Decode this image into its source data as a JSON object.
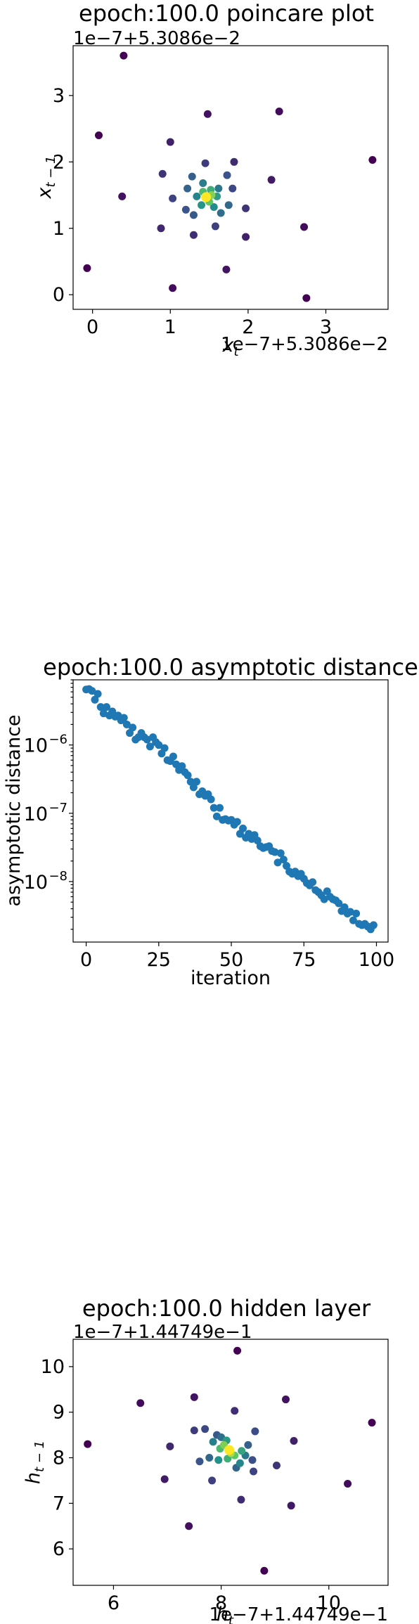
{
  "chart_data": [
    {
      "type": "scatter",
      "title": "epoch:100.0 poincare plot",
      "xlabel": "x_t",
      "ylabel": "x_{t-1}",
      "x_offset_text": "1e−7+5.3086e−2",
      "y_offset_text": "1e−7+5.3086e−2",
      "xlim": [
        -0.25,
        3.8
      ],
      "ylim": [
        -0.22,
        3.75
      ],
      "xticks": [
        0,
        1,
        2,
        3
      ],
      "yticks": [
        0,
        1,
        2,
        3
      ],
      "grid": false,
      "colormap": [
        "#440154",
        "#3b528b",
        "#21918c",
        "#5ec962",
        "#fde725"
      ],
      "points": [
        {
          "x": 0.4,
          "y": 3.6,
          "c": 0.0
        },
        {
          "x": 3.6,
          "y": 2.03,
          "c": 0.0
        },
        {
          "x": 2.75,
          "y": -0.05,
          "c": 0.0
        },
        {
          "x": -0.07,
          "y": 0.4,
          "c": 0.0
        },
        {
          "x": 0.08,
          "y": 2.4,
          "c": 0.0
        },
        {
          "x": 2.4,
          "y": 2.76,
          "c": 0.03
        },
        {
          "x": 2.72,
          "y": 1.02,
          "c": 0.03
        },
        {
          "x": 1.03,
          "y": 0.1,
          "c": 0.03
        },
        {
          "x": 0.38,
          "y": 1.48,
          "c": 0.05
        },
        {
          "x": 1.48,
          "y": 2.72,
          "c": 0.05
        },
        {
          "x": 1.72,
          "y": 0.38,
          "c": 0.06
        },
        {
          "x": 2.3,
          "y": 1.73,
          "c": 0.08
        },
        {
          "x": 1.0,
          "y": 2.3,
          "c": 0.1
        },
        {
          "x": 1.97,
          "y": 0.87,
          "c": 0.1
        },
        {
          "x": 0.88,
          "y": 1.0,
          "c": 0.12
        },
        {
          "x": 1.82,
          "y": 2.0,
          "c": 0.13
        },
        {
          "x": 1.3,
          "y": 0.9,
          "c": 0.14
        },
        {
          "x": 0.9,
          "y": 1.82,
          "c": 0.15
        },
        {
          "x": 1.97,
          "y": 1.3,
          "c": 0.16
        },
        {
          "x": 1.45,
          "y": 1.98,
          "c": 0.18
        },
        {
          "x": 1.58,
          "y": 1.03,
          "c": 0.19
        },
        {
          "x": 1.03,
          "y": 1.45,
          "c": 0.2
        },
        {
          "x": 1.8,
          "y": 1.6,
          "c": 0.22
        },
        {
          "x": 1.73,
          "y": 1.8,
          "c": 0.25
        },
        {
          "x": 1.2,
          "y": 1.28,
          "c": 0.26
        },
        {
          "x": 1.3,
          "y": 1.2,
          "c": 0.28
        },
        {
          "x": 1.28,
          "y": 1.78,
          "c": 0.3
        },
        {
          "x": 1.22,
          "y": 1.6,
          "c": 0.32
        },
        {
          "x": 1.75,
          "y": 1.35,
          "c": 0.34
        },
        {
          "x": 1.65,
          "y": 1.23,
          "c": 0.36
        },
        {
          "x": 1.62,
          "y": 1.6,
          "c": 0.4
        },
        {
          "x": 1.42,
          "y": 1.68,
          "c": 0.42
        },
        {
          "x": 1.34,
          "y": 1.48,
          "c": 0.45
        },
        {
          "x": 1.56,
          "y": 1.32,
          "c": 0.48
        },
        {
          "x": 1.4,
          "y": 1.35,
          "c": 0.52
        },
        {
          "x": 1.6,
          "y": 1.48,
          "c": 0.56
        },
        {
          "x": 1.52,
          "y": 1.58,
          "c": 0.62
        },
        {
          "x": 1.42,
          "y": 1.55,
          "c": 0.68
        },
        {
          "x": 1.5,
          "y": 1.4,
          "c": 0.74
        },
        {
          "x": 1.53,
          "y": 1.5,
          "c": 0.82
        },
        {
          "x": 1.46,
          "y": 1.47,
          "c": 1.0
        }
      ]
    },
    {
      "type": "scatter",
      "title": "epoch:100.0 asymptotic distance",
      "xlabel": "iteration",
      "ylabel": "asymptotic distance",
      "yscale": "log",
      "xlim": [
        -4.5,
        104
      ],
      "ylim": [
        1.3e-09,
        9e-06
      ],
      "xticks": [
        0,
        25,
        50,
        75,
        100
      ],
      "yticks": [
        1e-08,
        1e-07,
        1e-06
      ],
      "ytick_labels": [
        "10",
        "10",
        "10"
      ],
      "ytick_exponents": [
        "−8",
        "−7",
        "−6"
      ],
      "color": "#1f77b4",
      "grid": false,
      "y": [
        6.5e-06,
        6.6e-06,
        6.2e-06,
        4.6e-06,
        5.6e-06,
        3.6e-06,
        2.9e-06,
        3.6e-06,
        2.7e-06,
        3.1e-06,
        2.6e-06,
        2.7e-06,
        2.3e-06,
        2.5e-06,
        2e-06,
        1.5e-06,
        1.8e-06,
        1.2e-06,
        1.3e-06,
        1.5e-06,
        1.3e-06,
        1.2e-06,
        9.5e-07,
        1.3e-06,
        1.1e-06,
        1e-06,
        7.5e-07,
        9e-07,
        6e-07,
        5.8e-07,
        6.8e-07,
        5.2e-07,
        4.3e-07,
        4.9e-07,
        4e-07,
        3.6e-07,
        2.9e-07,
        2.4e-07,
        2.9e-07,
        1.9e-07,
        2.1e-07,
        1.8e-07,
        1.9e-07,
        1.6e-07,
        1.2e-07,
        9e-08,
        1.2e-07,
        8e-08,
        8.2e-08,
        7.8e-08,
        8e-08,
        6.8e-08,
        7.5e-08,
        5e-08,
        6e-08,
        4.4e-08,
        5e-08,
        4.2e-08,
        4.8e-08,
        4e-08,
        3.3e-08,
        3.1e-08,
        3.2e-08,
        3.3e-08,
        2.8e-08,
        2.7e-08,
        1.9e-08,
        2.6e-08,
        2.1e-08,
        1.7e-08,
        1.4e-08,
        1.3e-08,
        1.4e-08,
        1.2e-08,
        1.3e-08,
        1.1e-08,
        9.5e-09,
        8.8e-09,
        9.8e-09,
        7.5e-09,
        7e-09,
        6.3e-09,
        5.5e-09,
        7.2e-09,
        6e-09,
        5.5e-09,
        5.3e-09,
        4.8e-09,
        3.7e-09,
        4.2e-09,
        3.4e-09,
        3.6e-09,
        2.7e-09,
        3.4e-09,
        2.4e-09,
        2.3e-09,
        2.4e-09,
        2.2e-09,
        2e-09,
        2.3e-09
      ]
    },
    {
      "type": "scatter",
      "title": "epoch:100.0 hidden layer",
      "xlabel": "h_t",
      "ylabel": "h_{t-1}",
      "x_offset_text": "1e−7+1.44749e−1",
      "y_offset_text": "1e−7+1.44749e−1",
      "xlim": [
        5.25,
        11.1
      ],
      "ylim": [
        5.2,
        10.6
      ],
      "xticks": [
        6,
        8,
        10
      ],
      "yticks": [
        6,
        7,
        8,
        9,
        10
      ],
      "grid": false,
      "colormap": [
        "#440154",
        "#3b528b",
        "#21918c",
        "#5ec962",
        "#fde725"
      ],
      "points": [
        {
          "x": 8.3,
          "y": 10.35,
          "c": 0.0
        },
        {
          "x": 10.8,
          "y": 8.77,
          "c": 0.0
        },
        {
          "x": 8.8,
          "y": 5.52,
          "c": 0.0
        },
        {
          "x": 5.52,
          "y": 8.3,
          "c": 0.0
        },
        {
          "x": 6.5,
          "y": 9.2,
          "c": 0.03
        },
        {
          "x": 10.35,
          "y": 7.43,
          "c": 0.03
        },
        {
          "x": 7.4,
          "y": 6.5,
          "c": 0.04
        },
        {
          "x": 9.2,
          "y": 9.28,
          "c": 0.05
        },
        {
          "x": 7.5,
          "y": 9.33,
          "c": 0.06
        },
        {
          "x": 9.3,
          "y": 6.95,
          "c": 0.07
        },
        {
          "x": 6.95,
          "y": 7.53,
          "c": 0.08
        },
        {
          "x": 9.35,
          "y": 8.37,
          "c": 0.1
        },
        {
          "x": 7.05,
          "y": 8.25,
          "c": 0.12
        },
        {
          "x": 8.37,
          "y": 7.08,
          "c": 0.13
        },
        {
          "x": 8.25,
          "y": 9.03,
          "c": 0.14
        },
        {
          "x": 9.03,
          "y": 7.83,
          "c": 0.16
        },
        {
          "x": 7.5,
          "y": 8.6,
          "c": 0.18
        },
        {
          "x": 7.83,
          "y": 7.5,
          "c": 0.19
        },
        {
          "x": 8.6,
          "y": 7.7,
          "c": 0.2
        },
        {
          "x": 7.7,
          "y": 8.63,
          "c": 0.22
        },
        {
          "x": 8.63,
          "y": 8.58,
          "c": 0.23
        },
        {
          "x": 8.58,
          "y": 7.95,
          "c": 0.24
        },
        {
          "x": 7.6,
          "y": 7.92,
          "c": 0.26
        },
        {
          "x": 7.92,
          "y": 8.5,
          "c": 0.28
        },
        {
          "x": 8.5,
          "y": 8.28,
          "c": 0.3
        },
        {
          "x": 8.28,
          "y": 7.78,
          "c": 0.32
        },
        {
          "x": 7.78,
          "y": 8.0,
          "c": 0.34
        },
        {
          "x": 8.0,
          "y": 8.45,
          "c": 0.37
        },
        {
          "x": 8.45,
          "y": 8.05,
          "c": 0.4
        },
        {
          "x": 7.85,
          "y": 8.35,
          "c": 0.43
        },
        {
          "x": 8.35,
          "y": 7.88,
          "c": 0.46
        },
        {
          "x": 7.95,
          "y": 7.95,
          "c": 0.5
        },
        {
          "x": 8.1,
          "y": 8.38,
          "c": 0.54
        },
        {
          "x": 8.38,
          "y": 8.15,
          "c": 0.58
        },
        {
          "x": 8.12,
          "y": 7.98,
          "c": 0.63
        },
        {
          "x": 7.98,
          "y": 8.2,
          "c": 0.68
        },
        {
          "x": 8.25,
          "y": 8.05,
          "c": 0.74
        },
        {
          "x": 8.05,
          "y": 8.28,
          "c": 0.8
        },
        {
          "x": 8.18,
          "y": 8.1,
          "c": 0.88
        },
        {
          "x": 8.15,
          "y": 8.17,
          "c": 1.0
        }
      ]
    }
  ]
}
